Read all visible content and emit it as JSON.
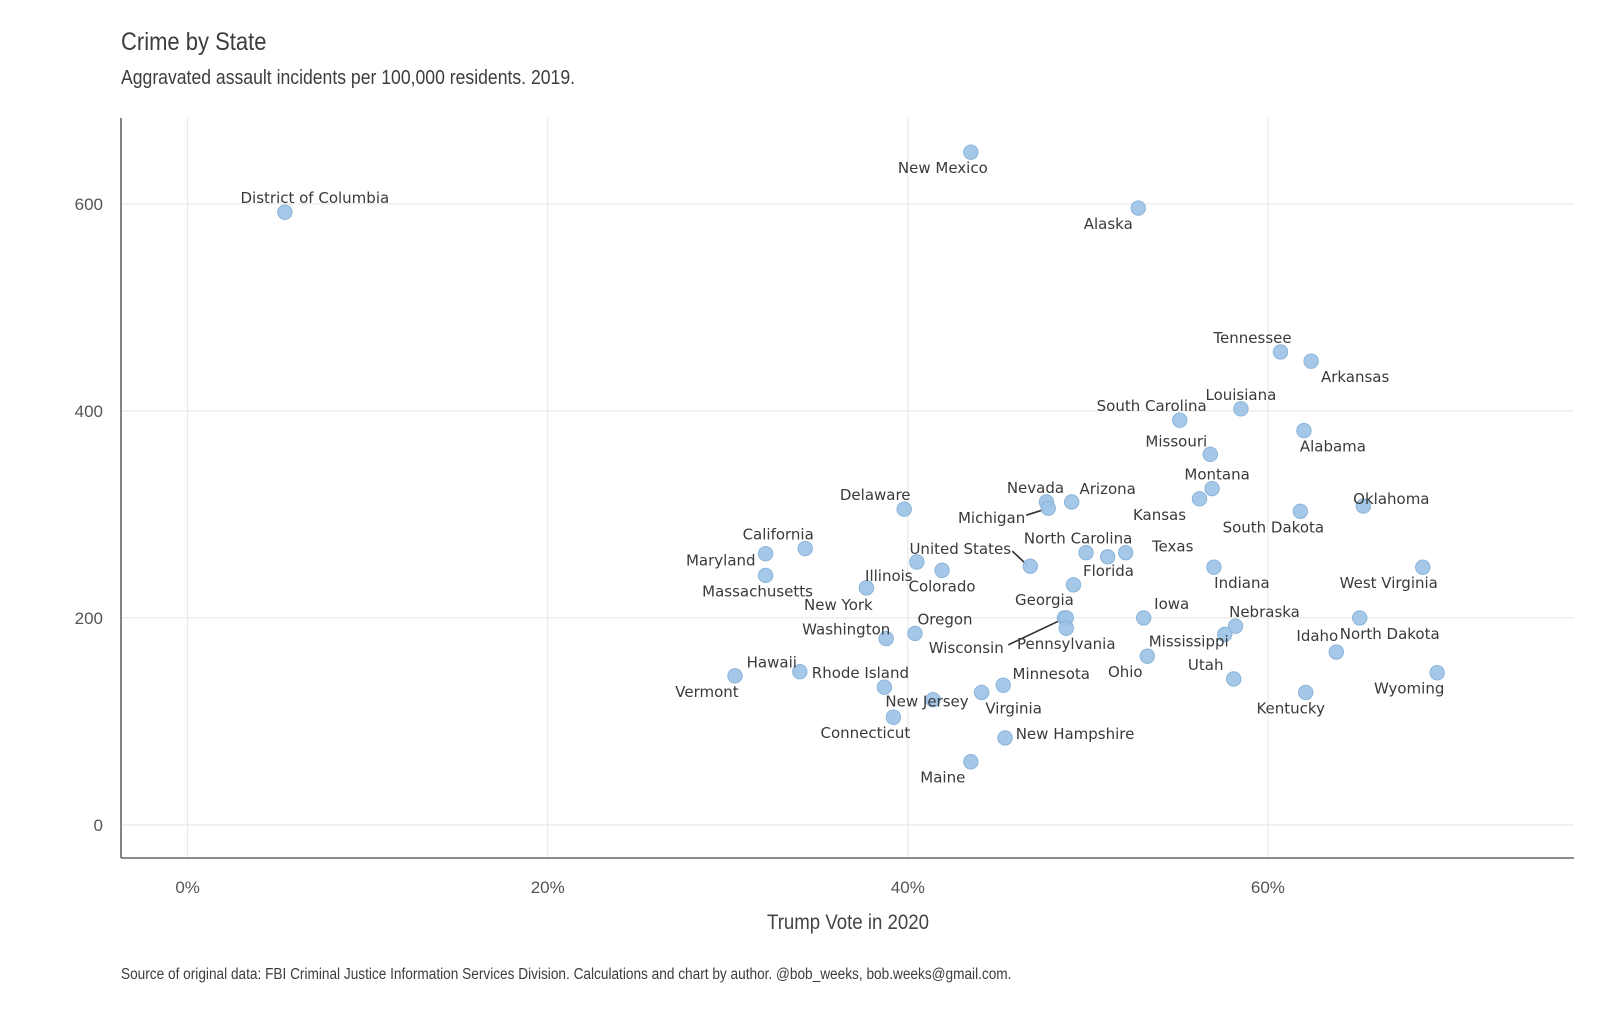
{
  "chart_data": {
    "type": "scatter",
    "title": "Crime by State",
    "subtitle": "Aggravated assault incidents per 100,000 residents. 2019.",
    "xlabel": "Trump Vote in 2020",
    "ylabel": "",
    "caption": "Source of original data: FBI Criminal Justice Information Services Division. Calculations and chart by author. @bob_weeks, bob.weeks@gmail.com.",
    "x_ticks": [
      "0%",
      "20%",
      "40%",
      "60%"
    ],
    "y_ticks": [
      "0",
      "200",
      "400",
      "600"
    ],
    "xlim": [
      -0.037,
      0.77
    ],
    "ylim": [
      -32,
      683
    ],
    "grid": true,
    "point_color": "#9dc3e6",
    "points": [
      {
        "label": "District of Columbia",
        "x": 0.054,
        "y": 592
      },
      {
        "label": "New Mexico",
        "x": 0.435,
        "y": 650
      },
      {
        "label": "Alaska",
        "x": 0.528,
        "y": 596
      },
      {
        "label": "Tennessee",
        "x": 0.607,
        "y": 457
      },
      {
        "label": "Arkansas",
        "x": 0.624,
        "y": 448
      },
      {
        "label": "Louisiana",
        "x": 0.585,
        "y": 402
      },
      {
        "label": "South Carolina",
        "x": 0.551,
        "y": 391
      },
      {
        "label": "Alabama",
        "x": 0.62,
        "y": 381
      },
      {
        "label": "Missouri",
        "x": 0.568,
        "y": 358
      },
      {
        "label": "Montana",
        "x": 0.569,
        "y": 325
      },
      {
        "label": "Kansas",
        "x": 0.562,
        "y": 315
      },
      {
        "label": "Oklahoma",
        "x": 0.653,
        "y": 308
      },
      {
        "label": "South Dakota",
        "x": 0.618,
        "y": 303
      },
      {
        "label": "Nevada",
        "x": 0.477,
        "y": 312
      },
      {
        "label": "Arizona",
        "x": 0.491,
        "y": 312
      },
      {
        "label": "Michigan",
        "x": 0.478,
        "y": 306
      },
      {
        "label": "Delaware",
        "x": 0.398,
        "y": 305
      },
      {
        "label": "California",
        "x": 0.343,
        "y": 267
      },
      {
        "label": "Maryland",
        "x": 0.321,
        "y": 262
      },
      {
        "label": "Massachusetts",
        "x": 0.321,
        "y": 241
      },
      {
        "label": "North Carolina",
        "x": 0.499,
        "y": 263
      },
      {
        "label": "Texas",
        "x": 0.521,
        "y": 263
      },
      {
        "label": "",
        "x": 0.511,
        "y": 259
      },
      {
        "label": "United States",
        "x": 0.468,
        "y": 250
      },
      {
        "label": "Illinois",
        "x": 0.405,
        "y": 254
      },
      {
        "label": "Colorado",
        "x": 0.419,
        "y": 246
      },
      {
        "label": "Indiana",
        "x": 0.57,
        "y": 249
      },
      {
        "label": "West Virginia",
        "x": 0.686,
        "y": 249
      },
      {
        "label": "New York",
        "x": 0.377,
        "y": 229
      },
      {
        "label": "Florida",
        "x": 0.492,
        "y": 232
      },
      {
        "label": "Georgia",
        "x": 0.487,
        "y": 200
      },
      {
        "label": "Wisconsin",
        "x": 0.488,
        "y": 200
      },
      {
        "label": "Pennsylvania",
        "x": 0.488,
        "y": 190
      },
      {
        "label": "Iowa",
        "x": 0.531,
        "y": 200
      },
      {
        "label": "North Dakota",
        "x": 0.651,
        "y": 200
      },
      {
        "label": "Nebraska",
        "x": 0.582,
        "y": 192
      },
      {
        "label": "Mississippi",
        "x": 0.576,
        "y": 184
      },
      {
        "label": "Washington",
        "x": 0.388,
        "y": 180
      },
      {
        "label": "Oregon",
        "x": 0.404,
        "y": 185
      },
      {
        "label": "Ohio",
        "x": 0.533,
        "y": 163
      },
      {
        "label": "Utah",
        "x": 0.581,
        "y": 141
      },
      {
        "label": "Idaho",
        "x": 0.638,
        "y": 167
      },
      {
        "label": "Wyoming",
        "x": 0.694,
        "y": 147
      },
      {
        "label": "Hawaii",
        "x": 0.34,
        "y": 148
      },
      {
        "label": "Vermont",
        "x": 0.304,
        "y": 144
      },
      {
        "label": "Rhode Island",
        "x": 0.387,
        "y": 133
      },
      {
        "label": "Minnesota",
        "x": 0.453,
        "y": 135
      },
      {
        "label": "Virginia",
        "x": 0.441,
        "y": 128
      },
      {
        "label": "New Jersey",
        "x": 0.414,
        "y": 121
      },
      {
        "label": "Kentucky",
        "x": 0.621,
        "y": 128
      },
      {
        "label": "Connecticut",
        "x": 0.392,
        "y": 104
      },
      {
        "label": "New Hampshire",
        "x": 0.454,
        "y": 84
      },
      {
        "label": "Maine",
        "x": 0.435,
        "y": 61
      }
    ]
  }
}
